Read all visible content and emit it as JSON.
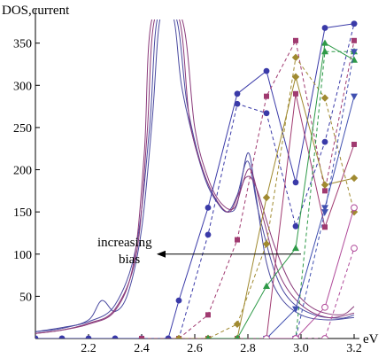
{
  "chart_data": {
    "type": "line",
    "title": "",
    "xlabel": "eV",
    "ylabel": "DOS,current",
    "xlim": [
      2.0,
      3.22
    ],
    "ylim": [
      0,
      378
    ],
    "x_ticks": [
      {
        "value": 2.2,
        "label": "2.2"
      },
      {
        "value": 2.4,
        "label": "2.4"
      },
      {
        "value": 2.6,
        "label": "2.6"
      },
      {
        "value": 2.8,
        "label": "2.8"
      },
      {
        "value": 3.0,
        "label": "3.0"
      },
      {
        "value": 3.2,
        "label": "3.2"
      }
    ],
    "y_ticks": [
      {
        "value": 50,
        "label": "50"
      },
      {
        "value": 100,
        "label": "100"
      },
      {
        "value": 150,
        "label": "150"
      },
      {
        "value": 200,
        "label": "200"
      },
      {
        "value": 250,
        "label": "250"
      },
      {
        "value": 300,
        "label": "300"
      },
      {
        "value": 350,
        "label": "350"
      }
    ],
    "grid": false,
    "legend": "none",
    "annotation": {
      "lines": [
        "increasing",
        "bias"
      ],
      "arrow_from": [
        3.0,
        100
      ],
      "arrow_to": [
        2.46,
        100
      ]
    },
    "dos_curves": [
      {
        "color": "#4a4aa0",
        "points": [
          [
            2.0,
            8
          ],
          [
            2.1,
            12
          ],
          [
            2.2,
            22
          ],
          [
            2.25,
            45
          ],
          [
            2.3,
            32
          ],
          [
            2.35,
            55
          ],
          [
            2.4,
            130
          ],
          [
            2.44,
            260
          ],
          [
            2.47,
            380
          ],
          [
            2.52,
            380
          ],
          [
            2.55,
            300
          ],
          [
            2.6,
            230
          ],
          [
            2.65,
            180
          ],
          [
            2.7,
            155
          ],
          [
            2.73,
            150
          ],
          [
            2.76,
            160
          ],
          [
            2.8,
            220
          ],
          [
            2.83,
            170
          ],
          [
            2.87,
            90
          ],
          [
            2.92,
            50
          ],
          [
            3.0,
            28
          ],
          [
            3.1,
            22
          ],
          [
            3.2,
            25
          ]
        ]
      },
      {
        "color": "#4a4aa0",
        "points": [
          [
            2.0,
            8
          ],
          [
            2.1,
            13
          ],
          [
            2.2,
            20
          ],
          [
            2.3,
            40
          ],
          [
            2.38,
            110
          ],
          [
            2.43,
            250
          ],
          [
            2.46,
            380
          ],
          [
            2.53,
            380
          ],
          [
            2.57,
            280
          ],
          [
            2.62,
            210
          ],
          [
            2.67,
            170
          ],
          [
            2.72,
            150
          ],
          [
            2.76,
            170
          ],
          [
            2.8,
            210
          ],
          [
            2.84,
            150
          ],
          [
            2.9,
            80
          ],
          [
            2.96,
            45
          ],
          [
            3.05,
            28
          ],
          [
            3.15,
            24
          ],
          [
            3.2,
            28
          ]
        ]
      },
      {
        "color": "#8a3a7a",
        "points": [
          [
            2.0,
            6
          ],
          [
            2.1,
            10
          ],
          [
            2.2,
            18
          ],
          [
            2.3,
            35
          ],
          [
            2.38,
            100
          ],
          [
            2.42,
            240
          ],
          [
            2.45,
            380
          ],
          [
            2.54,
            380
          ],
          [
            2.58,
            260
          ],
          [
            2.63,
            200
          ],
          [
            2.68,
            165
          ],
          [
            2.73,
            150
          ],
          [
            2.77,
            175
          ],
          [
            2.81,
            200
          ],
          [
            2.86,
            140
          ],
          [
            2.92,
            75
          ],
          [
            3.0,
            40
          ],
          [
            3.1,
            25
          ],
          [
            3.2,
            30
          ]
        ]
      },
      {
        "color": "#8a3a7a",
        "points": [
          [
            2.0,
            6
          ],
          [
            2.1,
            10
          ],
          [
            2.2,
            17
          ],
          [
            2.3,
            33
          ],
          [
            2.37,
            90
          ],
          [
            2.41,
            220
          ],
          [
            2.44,
            380
          ],
          [
            2.55,
            380
          ],
          [
            2.6,
            250
          ],
          [
            2.65,
            190
          ],
          [
            2.7,
            160
          ],
          [
            2.75,
            155
          ],
          [
            2.79,
            190
          ],
          [
            2.83,
            180
          ],
          [
            2.9,
            110
          ],
          [
            2.97,
            60
          ],
          [
            3.05,
            35
          ],
          [
            3.15,
            28
          ],
          [
            3.2,
            38
          ]
        ]
      }
    ],
    "series": [
      {
        "marker": "circle-filled",
        "color": "#3a3aa8",
        "dashed": false,
        "points": [
          [
            2.0,
            0
          ],
          [
            2.1,
            0
          ],
          [
            2.2,
            0
          ],
          [
            2.3,
            0
          ],
          [
            2.4,
            0
          ],
          [
            2.5,
            0
          ],
          [
            2.54,
            45
          ],
          [
            2.65,
            155
          ],
          [
            2.76,
            290
          ],
          [
            2.87,
            317
          ],
          [
            2.98,
            185
          ],
          [
            3.09,
            368
          ],
          [
            3.2,
            373
          ]
        ]
      },
      {
        "marker": "circle-filled",
        "color": "#3a3aa8",
        "dashed": true,
        "points": [
          [
            2.0,
            0
          ],
          [
            2.1,
            0
          ],
          [
            2.2,
            0
          ],
          [
            2.3,
            0
          ],
          [
            2.4,
            0
          ],
          [
            2.5,
            0
          ],
          [
            2.54,
            0
          ],
          [
            2.65,
            123
          ],
          [
            2.76,
            278
          ],
          [
            2.87,
            267
          ],
          [
            2.98,
            133
          ],
          [
            3.09,
            233
          ],
          [
            3.2,
            373
          ]
        ]
      },
      {
        "marker": "square",
        "color": "#a03a70",
        "dashed": true,
        "points": [
          [
            2.4,
            0
          ],
          [
            2.54,
            0
          ],
          [
            2.65,
            28
          ],
          [
            2.76,
            117
          ],
          [
            2.87,
            287
          ],
          [
            2.98,
            353
          ],
          [
            3.09,
            175
          ],
          [
            3.2,
            353
          ]
        ]
      },
      {
        "marker": "square",
        "color": "#a03a70",
        "dashed": false,
        "points": [
          [
            2.54,
            0
          ],
          [
            2.65,
            0
          ],
          [
            2.76,
            0
          ],
          [
            2.87,
            0
          ],
          [
            2.98,
            290
          ],
          [
            3.09,
            132
          ],
          [
            3.2,
            230
          ]
        ]
      },
      {
        "marker": "diamond",
        "color": "#a08a30",
        "dashed": true,
        "points": [
          [
            2.54,
            0
          ],
          [
            2.65,
            0
          ],
          [
            2.76,
            17
          ],
          [
            2.87,
            112
          ],
          [
            2.98,
            333
          ],
          [
            3.09,
            285
          ],
          [
            3.2,
            150
          ]
        ]
      },
      {
        "marker": "diamond",
        "color": "#a08a30",
        "dashed": false,
        "points": [
          [
            2.65,
            0
          ],
          [
            2.76,
            0
          ],
          [
            2.87,
            167
          ],
          [
            2.98,
            310
          ],
          [
            3.09,
            182
          ],
          [
            3.2,
            190
          ]
        ]
      },
      {
        "marker": "triangle",
        "color": "#2e9a48",
        "dashed": false,
        "points": [
          [
            2.65,
            0
          ],
          [
            2.76,
            0
          ],
          [
            2.87,
            62
          ],
          [
            2.98,
            107
          ],
          [
            3.09,
            350
          ],
          [
            3.2,
            330
          ]
        ]
      },
      {
        "marker": "triangle",
        "color": "#2e9a48",
        "dashed": true,
        "points": [
          [
            2.76,
            0
          ],
          [
            2.87,
            0
          ],
          [
            2.98,
            0
          ],
          [
            3.09,
            340
          ],
          [
            3.2,
            340
          ]
        ]
      },
      {
        "marker": "triangle-down",
        "color": "#4050b0",
        "dashed": false,
        "points": [
          [
            2.87,
            0
          ],
          [
            2.98,
            35
          ],
          [
            3.09,
            155
          ],
          [
            3.2,
            287
          ]
        ]
      },
      {
        "marker": "triangle-down",
        "color": "#4050b0",
        "dashed": true,
        "points": [
          [
            2.87,
            0
          ],
          [
            2.98,
            0
          ],
          [
            3.09,
            150
          ],
          [
            3.2,
            340
          ]
        ]
      },
      {
        "marker": "circle-open",
        "color": "#b04a9a",
        "dashed": false,
        "points": [
          [
            2.87,
            0
          ],
          [
            2.98,
            0
          ],
          [
            3.09,
            37
          ],
          [
            3.2,
            155
          ]
        ]
      },
      {
        "marker": "circle-open",
        "color": "#b04a9a",
        "dashed": true,
        "points": [
          [
            2.98,
            0
          ],
          [
            3.09,
            0
          ],
          [
            3.2,
            107
          ]
        ]
      }
    ]
  }
}
